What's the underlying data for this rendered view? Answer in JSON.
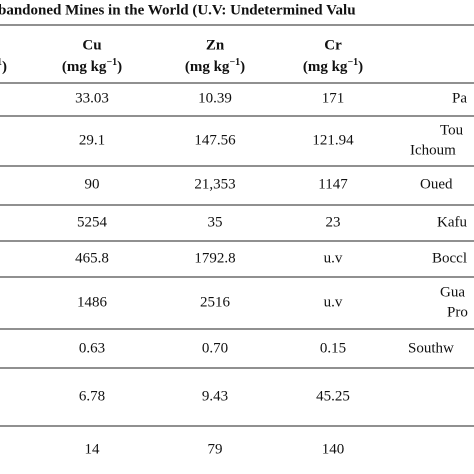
{
  "title": "bandoned Mines in the World (U.V: Undetermined Valu",
  "table": {
    "header": [
      {
        "exp": "1",
        "suffix": ")"
      },
      {
        "name": "Cu",
        "unit": "(mg kg",
        "exp": "−1",
        "suffix": ")"
      },
      {
        "name": "Zn",
        "unit": "(mg kg",
        "exp": "−1",
        "suffix": ")"
      },
      {
        "name": "Cr",
        "unit": "(mg kg",
        "exp": "−1",
        "suffix": ")"
      }
    ],
    "rows": [
      [
        "33.03",
        "10.39",
        "171",
        [
          "Pa"
        ]
      ],
      [
        "29.1",
        "147.56",
        "121.94",
        [
          "Tou",
          "Ichoum"
        ]
      ],
      [
        "90",
        "21,353",
        "1147",
        [
          "Oued"
        ]
      ],
      [
        "5254",
        "35",
        "23",
        [
          "Kafu"
        ]
      ],
      [
        "465.8",
        "1792.8",
        "u.v",
        [
          "Boccl"
        ]
      ],
      [
        "1486",
        "2516",
        "u.v",
        [
          "Gua",
          "Pro"
        ]
      ],
      [
        "0.63",
        "0.70",
        "0.15",
        [
          "Southw"
        ]
      ],
      [
        "6.78",
        "9.43",
        "45.25"
      ],
      [
        "14",
        "79",
        "140"
      ]
    ]
  }
}
